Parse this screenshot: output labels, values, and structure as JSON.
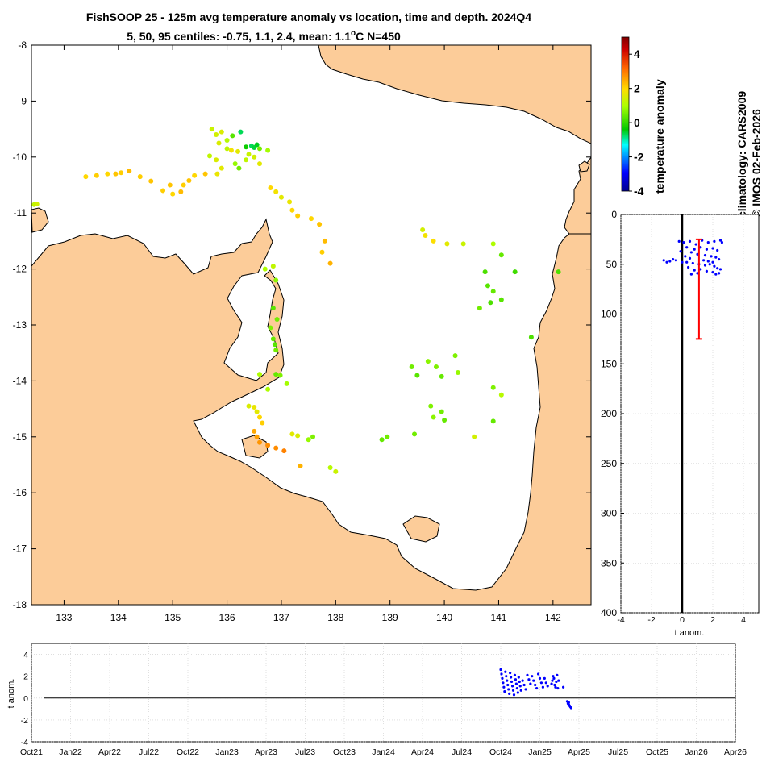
{
  "title": {
    "line1": "FishSOOP 25 - 125m avg temperature anomaly vs location, time and depth. 2024Q4",
    "line2_prefix": "5, 50, 95 centiles: -0.75, 1.1, 2.4, mean: 1.1",
    "line2_super": "o",
    "line2_suffix": "C N=450"
  },
  "credits": {
    "climatology": "climatology: CARS2009",
    "copyright": "© IMOS 02-Feb-2026"
  },
  "colors": {
    "land": "#fccc99",
    "coast": "#000000",
    "depth_points": "#0000ff",
    "mean_bar": "#ff0000",
    "time_points": "#0000ff"
  },
  "chart_data": [
    {
      "type": "scatter",
      "name": "map",
      "xlim": [
        132.4,
        142.7
      ],
      "ylim": [
        -18,
        -8
      ],
      "xticks": [
        133,
        134,
        135,
        136,
        137,
        138,
        139,
        140,
        141,
        142
      ],
      "yticks": [
        -8,
        -9,
        -10,
        -11,
        -12,
        -13,
        -14,
        -15,
        -16,
        -17,
        -18
      ],
      "colorbar": {
        "label": "temperature anomaly",
        "range": [
          -4,
          5
        ],
        "ticks": [
          4,
          2,
          0,
          -2,
          -4
        ]
      },
      "points": [
        [
          132.45,
          -10.85,
          1.2
        ],
        [
          132.5,
          -10.84,
          1.4
        ],
        [
          133.4,
          -10.35,
          2.0
        ],
        [
          133.6,
          -10.33,
          2.1
        ],
        [
          133.8,
          -10.3,
          2.0
        ],
        [
          133.95,
          -10.3,
          2.2
        ],
        [
          134.05,
          -10.28,
          2.1
        ],
        [
          134.2,
          -10.25,
          2.3
        ],
        [
          134.4,
          -10.35,
          2.1
        ],
        [
          134.6,
          -10.43,
          2.2
        ],
        [
          134.82,
          -10.6,
          2.1
        ],
        [
          134.95,
          -10.5,
          2.2
        ],
        [
          135.0,
          -10.66,
          2.0
        ],
        [
          135.15,
          -10.62,
          2.3
        ],
        [
          135.2,
          -10.5,
          2.1
        ],
        [
          135.3,
          -10.42,
          2.2
        ],
        [
          135.4,
          -10.33,
          2.0
        ],
        [
          135.6,
          -10.3,
          2.2
        ],
        [
          135.68,
          -9.98,
          1.2
        ],
        [
          135.72,
          -9.5,
          1.3
        ],
        [
          135.8,
          -9.6,
          1.4
        ],
        [
          135.9,
          -9.55,
          1.5
        ],
        [
          136.0,
          -9.7,
          1.1
        ],
        [
          136.1,
          -9.62,
          0.3
        ],
        [
          136.25,
          -9.55,
          -0.7
        ],
        [
          136.0,
          -9.85,
          1.2
        ],
        [
          135.85,
          -9.75,
          1.5
        ],
        [
          136.35,
          -9.82,
          -0.3
        ],
        [
          136.45,
          -9.8,
          -0.7
        ],
        [
          136.5,
          -9.83,
          -0.6
        ],
        [
          136.55,
          -9.78,
          -0.5
        ],
        [
          136.6,
          -9.85,
          0.5
        ],
        [
          136.75,
          -9.88,
          0.9
        ],
        [
          136.4,
          -9.95,
          1.3
        ],
        [
          136.2,
          -9.9,
          1.6
        ],
        [
          136.08,
          -9.88,
          1.8
        ],
        [
          136.15,
          -10.12,
          0.8
        ],
        [
          136.22,
          -10.2,
          0.5
        ],
        [
          136.35,
          -10.05,
          1.2
        ],
        [
          136.5,
          -10.0,
          1.4
        ],
        [
          136.6,
          -10.12,
          1.6
        ],
        [
          135.8,
          -10.05,
          1.5
        ],
        [
          135.9,
          -10.2,
          1.6
        ],
        [
          135.82,
          -10.3,
          1.7
        ],
        [
          136.8,
          -10.55,
          2.0
        ],
        [
          136.9,
          -10.62,
          1.8
        ],
        [
          137.0,
          -10.72,
          1.6
        ],
        [
          137.15,
          -10.8,
          1.7
        ],
        [
          137.2,
          -10.95,
          2.0
        ],
        [
          137.3,
          -11.05,
          2.1
        ],
        [
          137.55,
          -11.1,
          2.0
        ],
        [
          137.7,
          -11.2,
          2.2
        ],
        [
          137.8,
          -11.5,
          2.3
        ],
        [
          137.75,
          -11.7,
          2.1
        ],
        [
          137.9,
          -11.9,
          2.4
        ],
        [
          136.7,
          -12.0,
          1.0
        ],
        [
          136.85,
          -11.95,
          1.2
        ],
        [
          136.9,
          -12.2,
          0.7
        ],
        [
          136.85,
          -12.7,
          0.3
        ],
        [
          136.92,
          -12.9,
          0.5
        ],
        [
          136.8,
          -13.05,
          0.6
        ],
        [
          136.85,
          -13.25,
          0.4
        ],
        [
          136.88,
          -13.35,
          0.3
        ],
        [
          136.9,
          -13.45,
          0.5
        ],
        [
          136.6,
          -13.88,
          1.0
        ],
        [
          136.9,
          -13.88,
          0.4
        ],
        [
          136.98,
          -13.9,
          0.6
        ],
        [
          137.1,
          -14.05,
          0.9
        ],
        [
          136.75,
          -14.15,
          1.0
        ],
        [
          136.4,
          -14.45,
          1.5
        ],
        [
          136.5,
          -14.47,
          1.7
        ],
        [
          136.55,
          -14.55,
          1.6
        ],
        [
          136.6,
          -14.65,
          2.0
        ],
        [
          136.65,
          -14.75,
          2.1
        ],
        [
          136.5,
          -14.9,
          2.5
        ],
        [
          136.55,
          -15.0,
          2.6
        ],
        [
          136.6,
          -15.1,
          2.7
        ],
        [
          136.75,
          -15.15,
          2.8
        ],
        [
          136.9,
          -15.2,
          2.8
        ],
        [
          137.05,
          -15.25,
          2.9
        ],
        [
          137.2,
          -14.95,
          1.6
        ],
        [
          137.3,
          -14.98,
          1.5
        ],
        [
          137.5,
          -15.05,
          0.8
        ],
        [
          137.58,
          -15.0,
          0.6
        ],
        [
          137.35,
          -15.52,
          2.4
        ],
        [
          137.9,
          -15.55,
          1.1
        ],
        [
          138.0,
          -15.62,
          1.3
        ],
        [
          139.6,
          -11.3,
          1.4
        ],
        [
          139.65,
          -11.4,
          1.8
        ],
        [
          139.8,
          -11.5,
          1.9
        ],
        [
          140.05,
          -11.55,
          1.6
        ],
        [
          140.35,
          -11.55,
          1.3
        ],
        [
          140.9,
          -11.55,
          1.0
        ],
        [
          141.05,
          -11.75,
          0.4
        ],
        [
          140.75,
          -12.05,
          0.2
        ],
        [
          140.8,
          -12.3,
          0.3
        ],
        [
          140.9,
          -12.4,
          0.4
        ],
        [
          141.05,
          -12.55,
          0.3
        ],
        [
          141.3,
          -12.05,
          0.1
        ],
        [
          140.85,
          -12.6,
          0.2
        ],
        [
          140.65,
          -12.7,
          0.5
        ],
        [
          139.4,
          -13.75,
          0.5
        ],
        [
          139.5,
          -13.9,
          0.3
        ],
        [
          139.7,
          -13.65,
          0.7
        ],
        [
          139.85,
          -13.75,
          0.6
        ],
        [
          139.95,
          -13.92,
          0.4
        ],
        [
          140.2,
          -13.55,
          0.6
        ],
        [
          140.25,
          -13.85,
          0.8
        ],
        [
          140.9,
          -14.12,
          0.6
        ],
        [
          141.05,
          -14.25,
          1.1
        ],
        [
          141.6,
          -13.22,
          0.2
        ],
        [
          142.1,
          -12.05,
          0.2
        ],
        [
          139.75,
          -14.45,
          0.6
        ],
        [
          139.95,
          -14.55,
          0.5
        ],
        [
          140.0,
          -14.7,
          0.4
        ],
        [
          139.8,
          -14.65,
          0.7
        ],
        [
          139.45,
          -14.95,
          0.5
        ],
        [
          138.85,
          -15.05,
          0.4
        ],
        [
          138.95,
          -15.0,
          0.5
        ],
        [
          140.55,
          -15.0,
          1.4
        ],
        [
          140.9,
          -14.72,
          0.4
        ]
      ]
    },
    {
      "type": "scatter",
      "name": "depth_profile",
      "xlabel": "t anom.",
      "xlim": [
        -4,
        5
      ],
      "ylim": [
        0,
        400
      ],
      "xticks": [
        -4,
        -2,
        0,
        2,
        4
      ],
      "yticks": [
        0,
        50,
        100,
        150,
        200,
        250,
        300,
        350,
        400
      ],
      "mean_line": {
        "x": 1.1,
        "depth_from": 25,
        "depth_to": 125
      },
      "points": [
        [
          -0.2,
          27
        ],
        [
          0.1,
          28
        ],
        [
          0.5,
          27
        ],
        [
          0.9,
          30
        ],
        [
          1.3,
          26
        ],
        [
          1.7,
          28
        ],
        [
          2.1,
          27
        ],
        [
          2.5,
          26
        ],
        [
          2.6,
          28
        ],
        [
          0.3,
          33
        ],
        [
          0.8,
          35
        ],
        [
          1.2,
          33
        ],
        [
          1.6,
          35
        ],
        [
          2.0,
          34
        ],
        [
          2.3,
          36
        ],
        [
          -0.1,
          37
        ],
        [
          0.6,
          38
        ],
        [
          1.0,
          40
        ],
        [
          1.5,
          41
        ],
        [
          1.9,
          42
        ],
        [
          2.2,
          43
        ],
        [
          2.4,
          45
        ],
        [
          -1.2,
          46
        ],
        [
          -0.8,
          47
        ],
        [
          -0.4,
          46
        ],
        [
          0.0,
          48
        ],
        [
          0.3,
          48
        ],
        [
          0.7,
          49
        ],
        [
          1.1,
          50
        ],
        [
          1.5,
          51
        ],
        [
          1.8,
          50
        ],
        [
          2.1,
          52
        ],
        [
          2.3,
          54
        ],
        [
          2.5,
          55
        ],
        [
          0.4,
          53
        ],
        [
          0.8,
          56
        ],
        [
          1.2,
          55
        ],
        [
          1.6,
          57
        ],
        [
          2.0,
          58
        ],
        [
          2.4,
          59
        ],
        [
          0.6,
          60
        ],
        [
          1.0,
          59
        ],
        [
          2.2,
          60
        ],
        [
          -0.6,
          45
        ],
        [
          -1.0,
          48
        ],
        [
          0.2,
          42
        ],
        [
          0.5,
          44
        ],
        [
          1.4,
          46
        ],
        [
          1.7,
          47
        ],
        [
          2.0,
          48
        ]
      ]
    },
    {
      "type": "scatter",
      "name": "time_series",
      "ylabel": "t anom.",
      "xlim": [
        0,
        18
      ],
      "ylim": [
        -4,
        5
      ],
      "xticks": [
        "Oct21",
        "Jan22",
        "Apr22",
        "Jul22",
        "Oct22",
        "Jan23",
        "Apr23",
        "Jul23",
        "Oct23",
        "Jan24",
        "Apr24",
        "Jul24",
        "Oct24",
        "Jan25",
        "Apr25",
        "Jul25",
        "Oct25",
        "Jan26",
        "Apr26"
      ],
      "yticks": [
        4,
        2,
        0,
        -2,
        -4
      ],
      "points": [
        [
          12.0,
          2.6
        ],
        [
          12.02,
          2.2
        ],
        [
          12.04,
          1.8
        ],
        [
          12.06,
          1.4
        ],
        [
          12.08,
          1.0
        ],
        [
          12.1,
          0.6
        ],
        [
          12.12,
          2.4
        ],
        [
          12.14,
          2.0
        ],
        [
          12.16,
          1.6
        ],
        [
          12.18,
          1.2
        ],
        [
          12.2,
          0.8
        ],
        [
          12.22,
          0.4
        ],
        [
          12.24,
          2.3
        ],
        [
          12.26,
          1.9
        ],
        [
          12.28,
          1.5
        ],
        [
          12.3,
          1.1
        ],
        [
          12.32,
          0.7
        ],
        [
          12.34,
          0.3
        ],
        [
          12.36,
          2.1
        ],
        [
          12.38,
          1.7
        ],
        [
          12.4,
          1.3
        ],
        [
          12.42,
          0.9
        ],
        [
          12.44,
          0.5
        ],
        [
          12.46,
          1.9
        ],
        [
          12.48,
          1.5
        ],
        [
          12.5,
          1.1
        ],
        [
          12.52,
          0.7
        ],
        [
          12.56,
          1.6
        ],
        [
          12.6,
          1.2
        ],
        [
          12.64,
          0.8
        ],
        [
          12.68,
          2.1
        ],
        [
          12.72,
          1.7
        ],
        [
          12.76,
          1.3
        ],
        [
          12.8,
          2.0
        ],
        [
          12.84,
          1.6
        ],
        [
          12.88,
          1.2
        ],
        [
          12.92,
          0.9
        ],
        [
          12.96,
          2.2
        ],
        [
          13.0,
          1.8
        ],
        [
          13.04,
          1.4
        ],
        [
          13.08,
          1.0
        ],
        [
          13.12,
          1.8
        ],
        [
          13.16,
          1.4
        ],
        [
          13.2,
          1.1
        ],
        [
          13.3,
          1.3
        ],
        [
          13.32,
          1.6
        ],
        [
          13.34,
          2.0
        ],
        [
          13.36,
          1.8
        ],
        [
          13.38,
          1.2
        ],
        [
          13.4,
          1.0
        ],
        [
          13.42,
          1.5
        ],
        [
          13.44,
          2.1
        ],
        [
          13.46,
          0.9
        ],
        [
          13.48,
          1.6
        ],
        [
          13.6,
          1.0
        ],
        [
          13.7,
          -0.3
        ],
        [
          13.72,
          -0.5
        ],
        [
          13.74,
          -0.6
        ],
        [
          13.76,
          -0.7
        ],
        [
          13.78,
          -0.8
        ],
        [
          13.8,
          -0.9
        ],
        [
          13.74,
          -0.4
        ]
      ]
    }
  ]
}
